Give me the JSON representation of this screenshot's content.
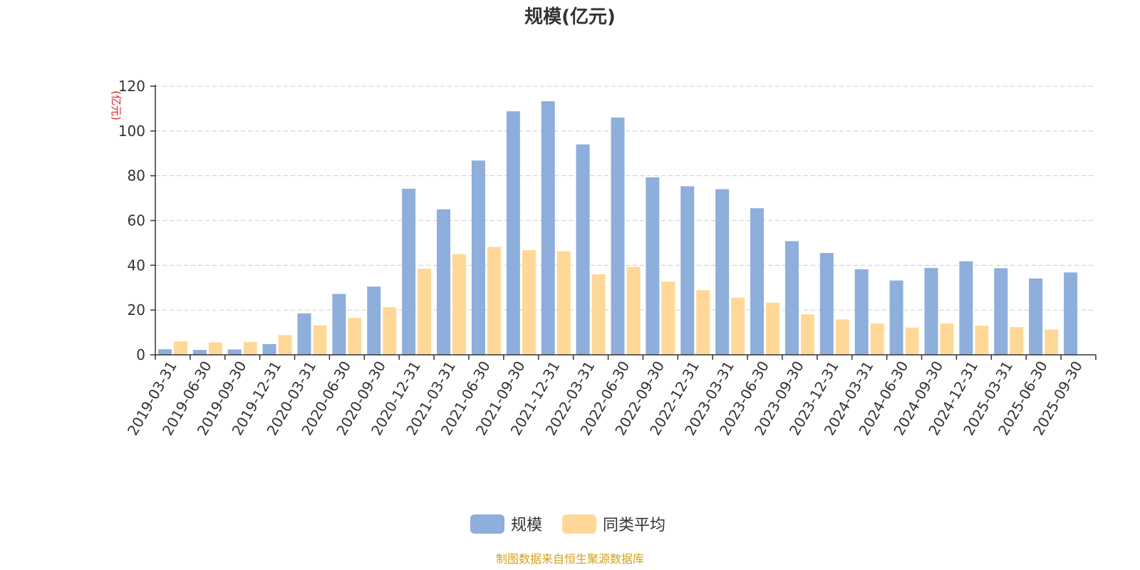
{
  "chart_data": {
    "type": "bar",
    "title": "规模(亿元)",
    "ylabel": "(亿元)",
    "xlabel": "",
    "ylim": [
      0,
      120
    ],
    "yticks": [
      0,
      20,
      40,
      60,
      80,
      100,
      120
    ],
    "grid": true,
    "legend_position": "bottom",
    "categories": [
      "2019-03-31",
      "2019-06-30",
      "2019-09-30",
      "2019-12-31",
      "2020-03-31",
      "2020-06-30",
      "2020-09-30",
      "2020-12-31",
      "2021-03-31",
      "2021-06-30",
      "2021-09-30",
      "2021-12-31",
      "2022-03-31",
      "2022-06-30",
      "2022-09-30",
      "2022-12-31",
      "2023-03-31",
      "2023-06-30",
      "2023-09-30",
      "2023-12-31",
      "2024-03-31",
      "2024-06-30",
      "2024-09-30",
      "2024-12-31",
      "2025-03-31",
      "2025-06-30",
      "2025-09-30"
    ],
    "series": [
      {
        "name": "规模",
        "color": "#8eaedb",
        "values": [
          2.5,
          2.2,
          2.4,
          4.8,
          18.5,
          27.2,
          30.5,
          74.2,
          65.0,
          86.8,
          108.8,
          113.3,
          94.0,
          106.0,
          79.3,
          75.3,
          74.0,
          65.5,
          50.8,
          45.5,
          38.2,
          33.2,
          38.8,
          41.8,
          38.7,
          34.1,
          36.8
        ]
      },
      {
        "name": "同类平均",
        "color": "#ffd898",
        "values": [
          6.0,
          5.6,
          5.8,
          8.8,
          13.2,
          16.5,
          21.3,
          38.5,
          45.0,
          48.2,
          46.8,
          46.3,
          36.0,
          39.3,
          32.7,
          28.9,
          25.5,
          23.3,
          18.1,
          15.8,
          14.0,
          12.2,
          14.0,
          13.0,
          12.4,
          11.3,
          null
        ]
      }
    ]
  },
  "source_text": "制图数据来自恒生聚源数据库",
  "colors": {
    "title": "#333333",
    "unit_label": "#e02020",
    "source_text": "#d4a017",
    "axis": "#333333",
    "grid": "#cccccc"
  }
}
